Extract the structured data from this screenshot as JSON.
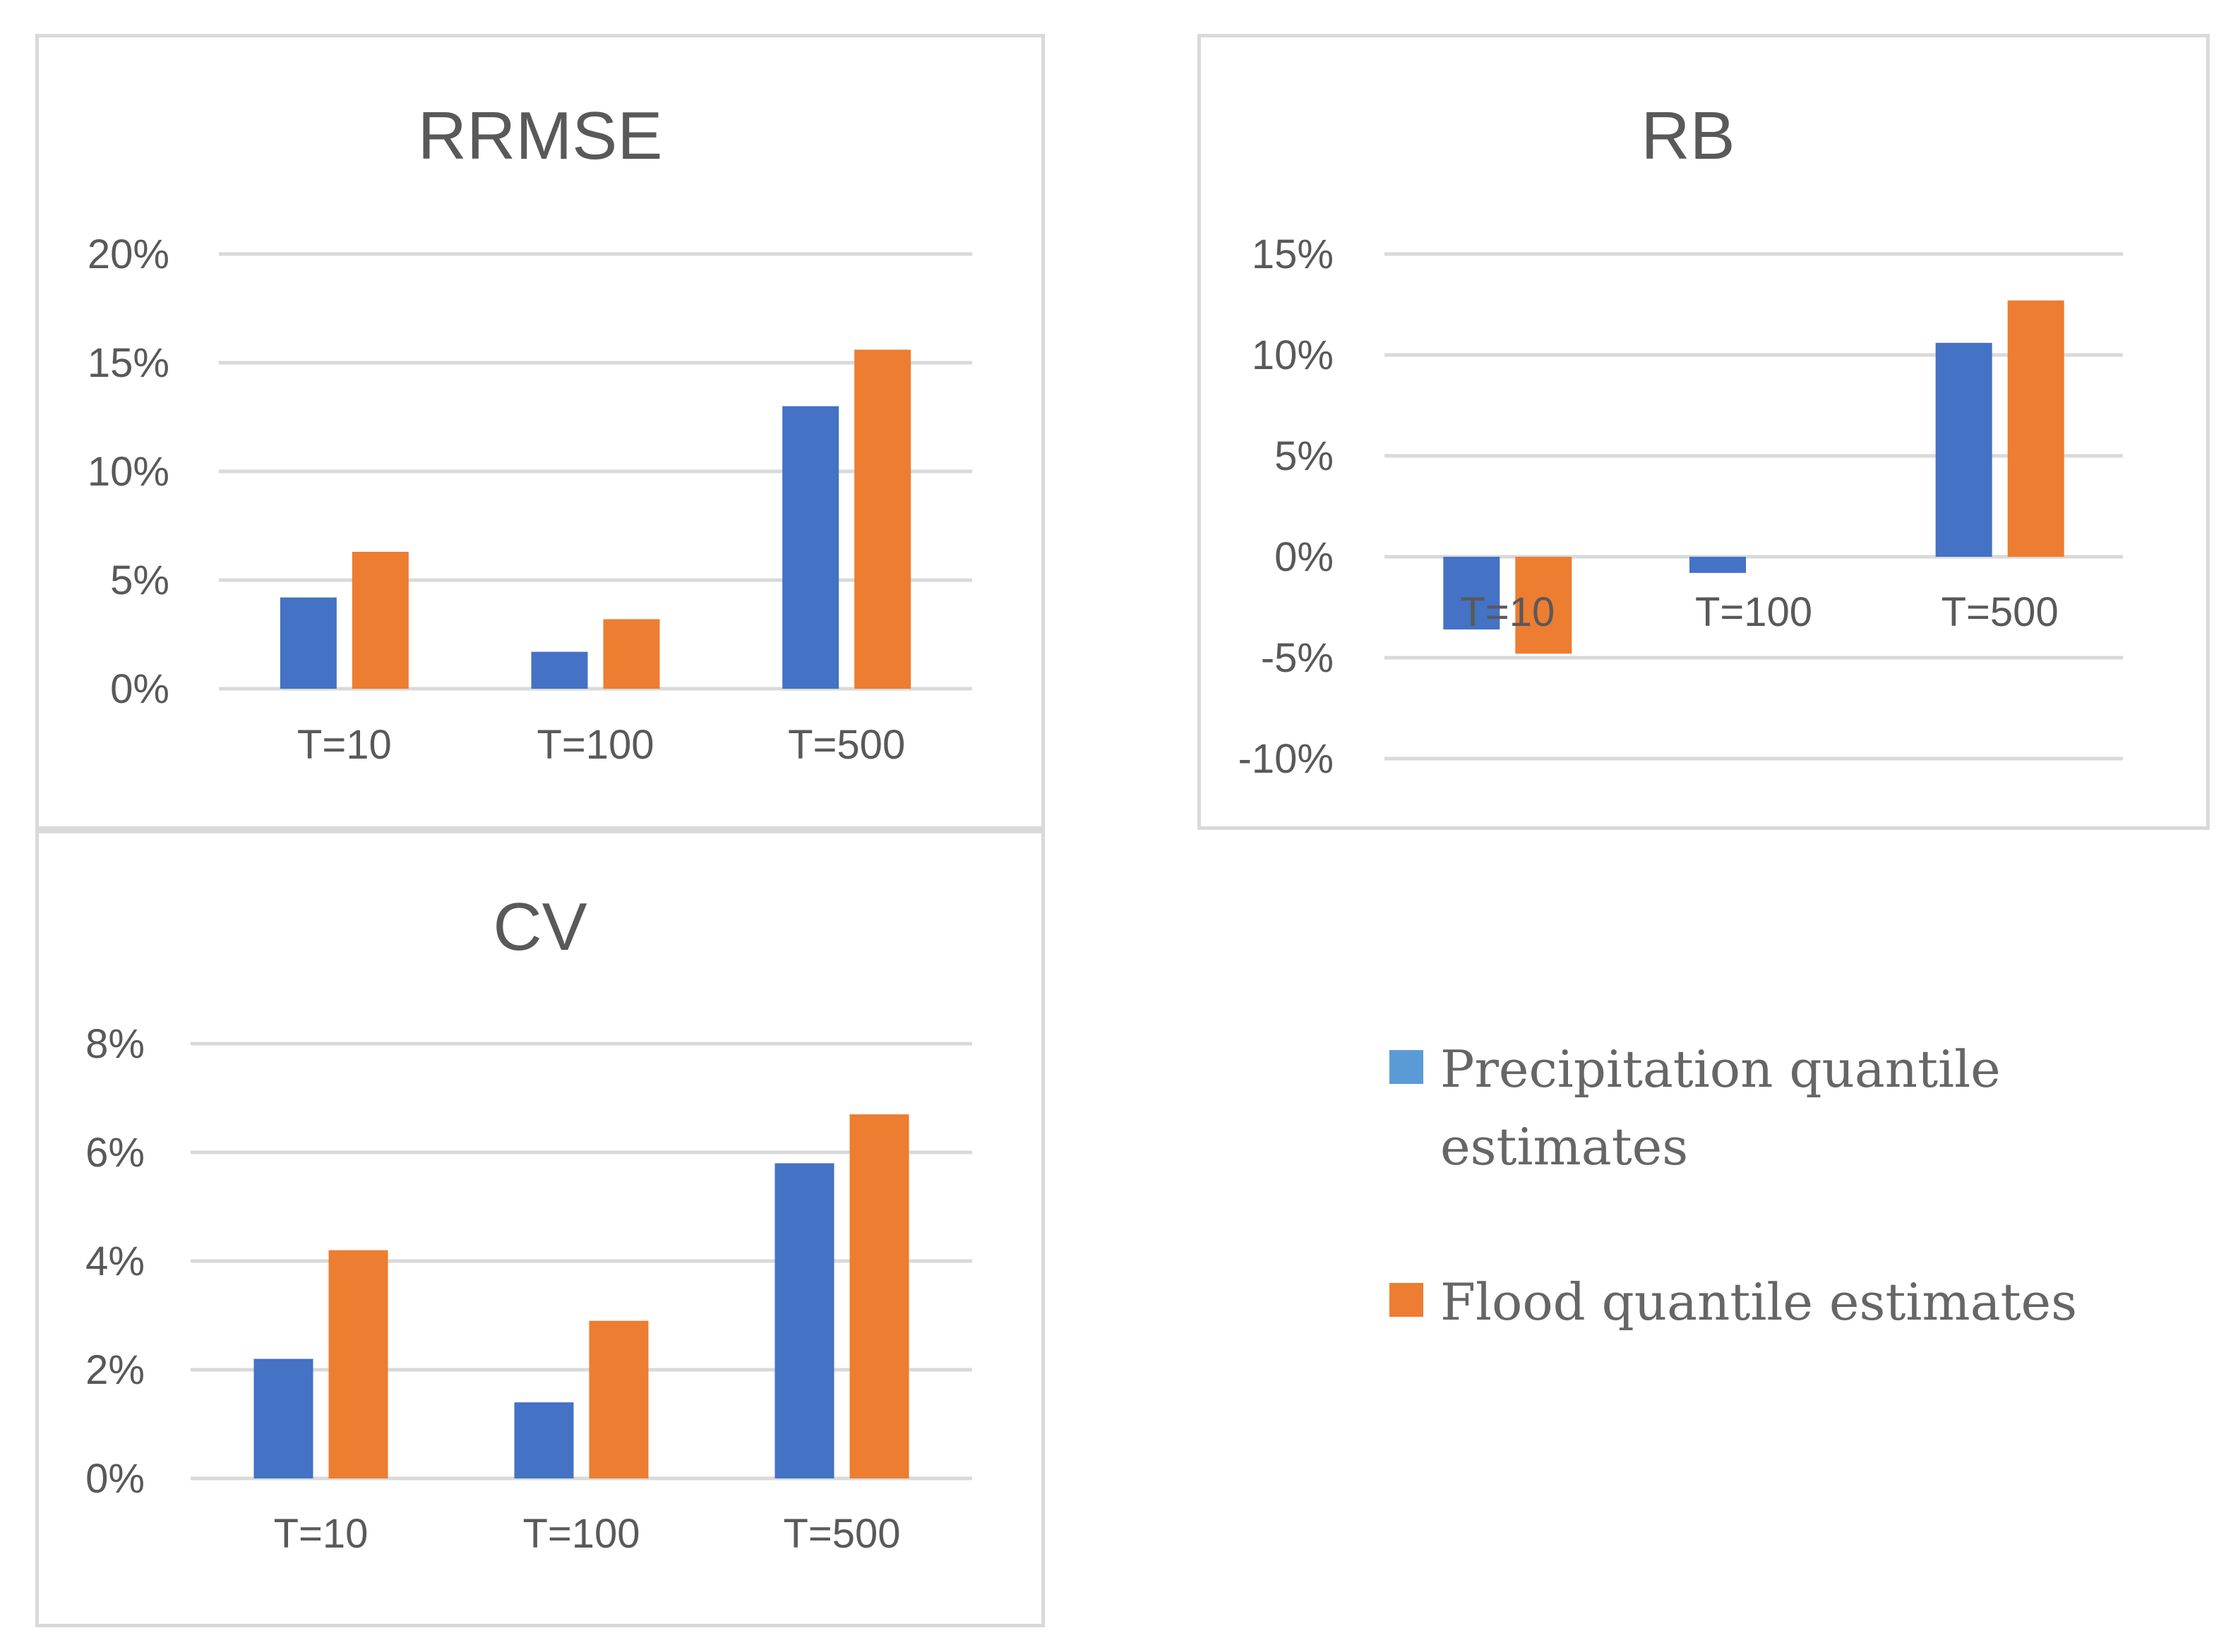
{
  "colors": {
    "precip": "#4472c4",
    "flood": "#ed7d31",
    "legend_precip": "#5b9bd5",
    "legend_flood": "#ed7d31"
  },
  "legend": [
    {
      "label": "Precipitation quantile estimates",
      "color_key": "legend_precip"
    },
    {
      "label": "Flood quantile estimates",
      "color_key": "legend_flood"
    }
  ],
  "chart_data": [
    {
      "id": "rrmse",
      "type": "bar",
      "title": "RRMSE",
      "categories": [
        "T=10",
        "T=100",
        "T=500"
      ],
      "series": [
        {
          "name": "Precipitation quantile estimates",
          "values": [
            4.2,
            1.7,
            13.0
          ]
        },
        {
          "name": "Flood quantile estimates",
          "values": [
            6.3,
            3.2,
            15.6
          ]
        }
      ],
      "ylim": [
        0,
        20
      ],
      "yticks": [
        0,
        5,
        10,
        15,
        20
      ],
      "tick_labels": [
        "0%",
        "5%",
        "10%",
        "15%",
        "20%"
      ],
      "grid": true,
      "cat_label_pos": "bottom"
    },
    {
      "id": "rb",
      "type": "bar",
      "title": "RB",
      "categories": [
        "T=10",
        "T=100",
        "T=500"
      ],
      "series": [
        {
          "name": "Precipitation quantile estimates",
          "values": [
            -3.6,
            -0.8,
            10.6
          ]
        },
        {
          "name": "Flood quantile estimates",
          "values": [
            -4.8,
            0.0,
            12.7
          ]
        }
      ],
      "ylim": [
        -10,
        15
      ],
      "yticks": [
        -10,
        -5,
        0,
        5,
        10,
        15
      ],
      "tick_labels": [
        "-10%",
        "-5%",
        "0%",
        "5%",
        "10%",
        "15%"
      ],
      "grid": true,
      "cat_label_pos": "below-zero"
    },
    {
      "id": "cv",
      "type": "bar",
      "title": "CV",
      "categories": [
        "T=10",
        "T=100",
        "T=500"
      ],
      "series": [
        {
          "name": "Precipitation quantile estimates",
          "values": [
            2.2,
            1.4,
            5.8
          ]
        },
        {
          "name": "Flood quantile estimates",
          "values": [
            4.2,
            2.9,
            6.7
          ]
        }
      ],
      "ylim": [
        0,
        8
      ],
      "yticks": [
        0,
        2,
        4,
        6,
        8
      ],
      "tick_labels": [
        "0%",
        "2%",
        "4%",
        "6%",
        "8%"
      ],
      "grid": true,
      "cat_label_pos": "bottom"
    }
  ]
}
